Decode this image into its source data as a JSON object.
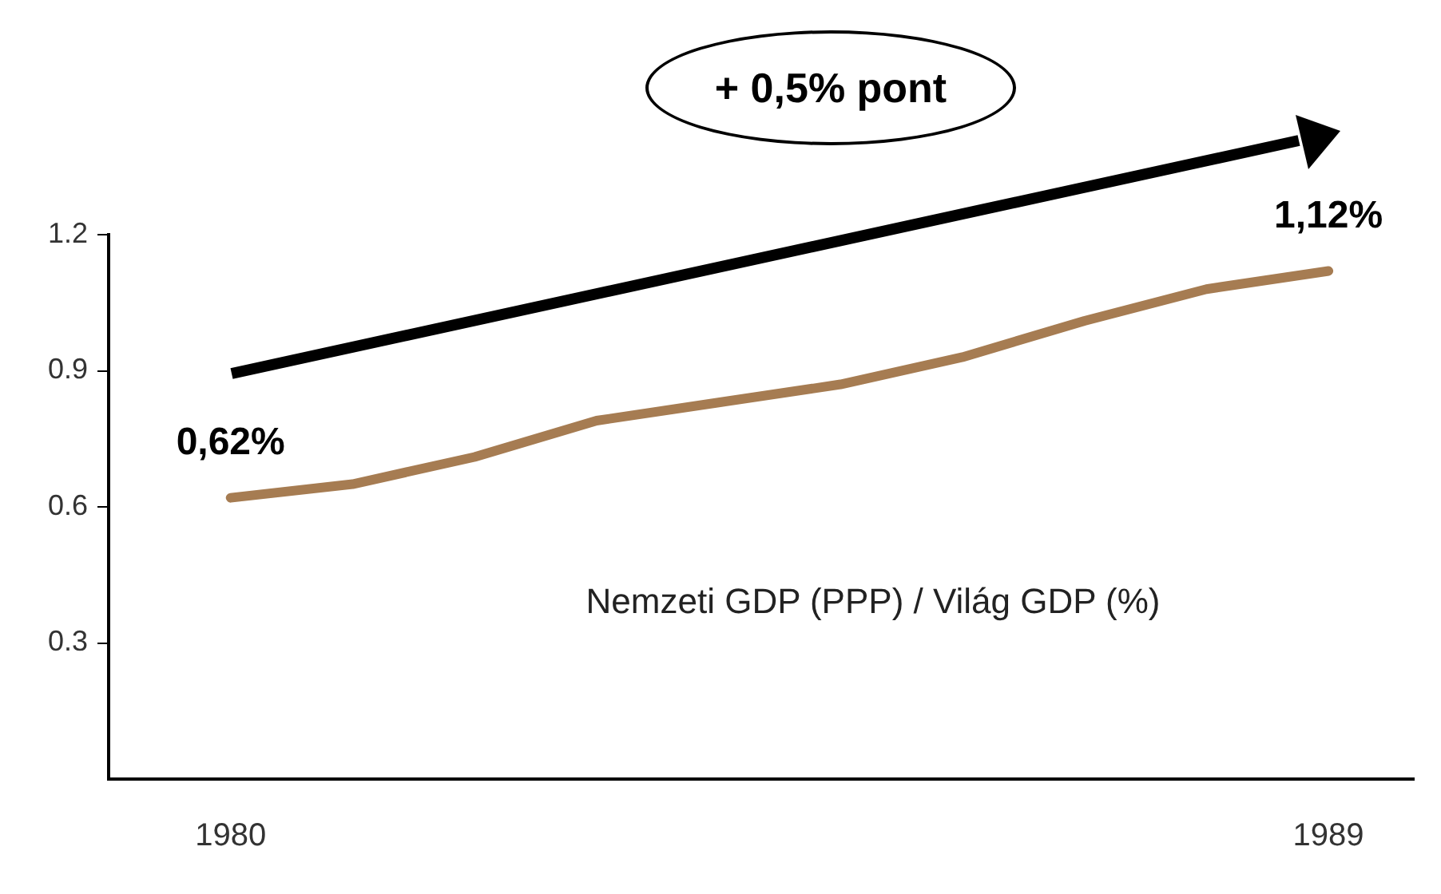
{
  "chart_data": {
    "type": "line",
    "annotations": [
      "+ 0,5% pont"
    ],
    "x": [
      1980,
      1981,
      1982,
      1983,
      1984,
      1985,
      1986,
      1987,
      1988,
      1989
    ],
    "series": [
      {
        "name": "Nemzeti GDP (PPP) / Világ GDP (%)",
        "color": "#a67c52",
        "values": [
          0.62,
          0.65,
          0.71,
          0.79,
          0.83,
          0.87,
          0.93,
          1.01,
          1.08,
          1.12
        ],
        "value_labels": [
          "0,62%",
          null,
          null,
          null,
          null,
          null,
          null,
          null,
          null,
          "1,12%"
        ]
      }
    ],
    "xlim": [
      1979,
      1989.7
    ],
    "xticks": [
      1980,
      1989
    ],
    "ylim": [
      0,
      1.2
    ],
    "yticks": [
      0.3,
      0.6,
      0.9,
      1.2
    ],
    "grid": false,
    "legend": false,
    "marker": "none",
    "line_style": "solid"
  }
}
